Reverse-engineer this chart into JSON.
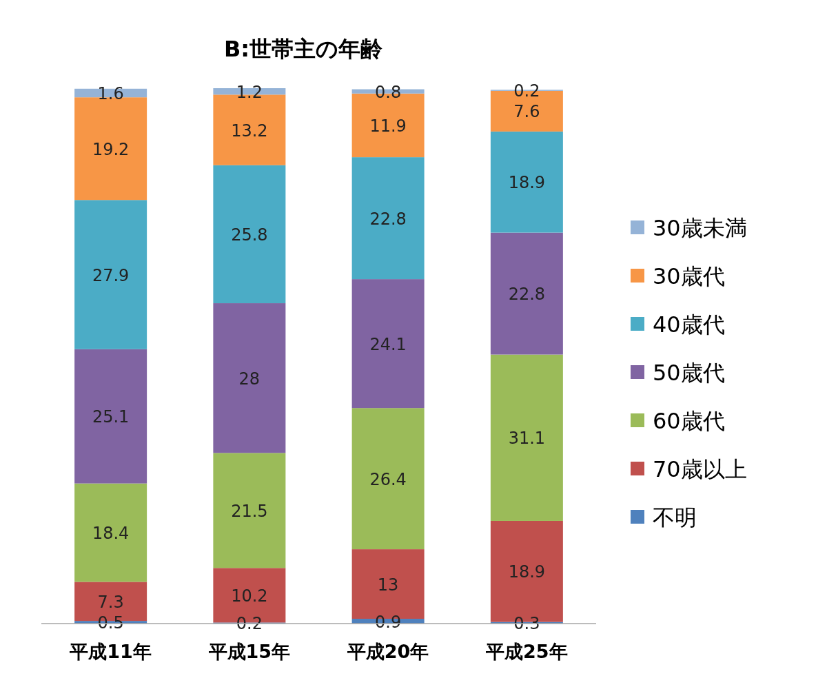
{
  "chart_data": {
    "type": "bar",
    "stacked": true,
    "title": "B:世帯主の年齢",
    "categories": [
      "平成11年",
      "平成15年",
      "平成20年",
      "平成25年"
    ],
    "data_labels": true,
    "legend": "right",
    "series": [
      {
        "name": "不明",
        "color": "#4f81bd",
        "values": [
          0.5,
          0.2,
          0.9,
          0.3
        ]
      },
      {
        "name": "70歳以上",
        "color": "#c0504d",
        "values": [
          7.3,
          10.2,
          13,
          18.9
        ]
      },
      {
        "name": "60歳代",
        "color": "#9bbb59",
        "values": [
          18.4,
          21.5,
          26.4,
          31.1
        ]
      },
      {
        "name": "50歳代",
        "color": "#8064a2",
        "values": [
          25.1,
          28,
          24.1,
          22.8
        ]
      },
      {
        "name": "40歳代",
        "color": "#4bacc6",
        "values": [
          27.9,
          25.8,
          22.8,
          18.9
        ]
      },
      {
        "name": "30歳代",
        "color": "#f79646",
        "values": [
          19.2,
          13.2,
          11.9,
          7.6
        ]
      },
      {
        "name": "30歳未満",
        "color": "#95b3d7",
        "values": [
          1.6,
          1.2,
          0.8,
          0.2
        ]
      }
    ]
  }
}
